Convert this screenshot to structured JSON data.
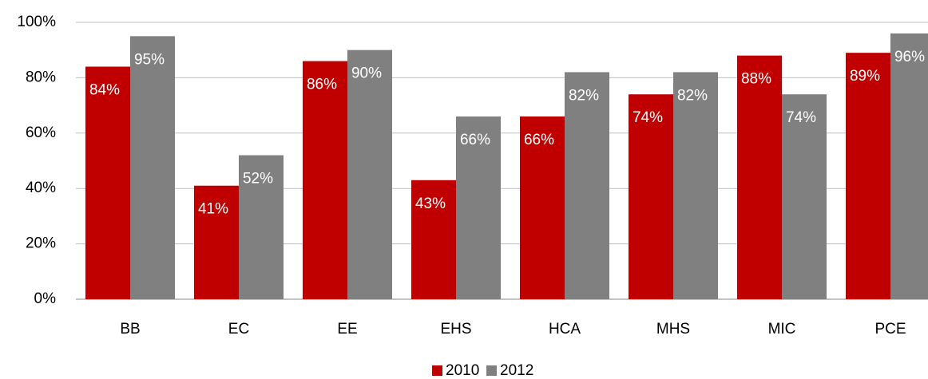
{
  "chart_data": {
    "type": "bar",
    "categories": [
      "BB",
      "EC",
      "EE",
      "EHS",
      "HCA",
      "MHS",
      "MIC",
      "PCE"
    ],
    "series": [
      {
        "name": "2010",
        "color": "#c00000",
        "values": [
          84,
          41,
          86,
          43,
          66,
          74,
          88,
          89
        ],
        "value_labels": [
          "84%",
          "41%",
          "86%",
          "43%",
          "66%",
          "74%",
          "88%",
          "89%"
        ]
      },
      {
        "name": "2012",
        "color": "#808080",
        "values": [
          95,
          52,
          90,
          66,
          82,
          82,
          74,
          96
        ],
        "value_labels": [
          "95%",
          "52%",
          "90%",
          "66%",
          "82%",
          "82%",
          "74%",
          "96%"
        ]
      }
    ],
    "ylim": [
      0,
      100
    ],
    "yticks": [
      {
        "value": 0,
        "label": "0%"
      },
      {
        "value": 20,
        "label": "20%"
      },
      {
        "value": 40,
        "label": "40%"
      },
      {
        "value": 60,
        "label": "60%"
      },
      {
        "value": 80,
        "label": "80%"
      },
      {
        "value": 100,
        "label": "100%"
      }
    ],
    "grid": true,
    "legend": "bottom"
  }
}
